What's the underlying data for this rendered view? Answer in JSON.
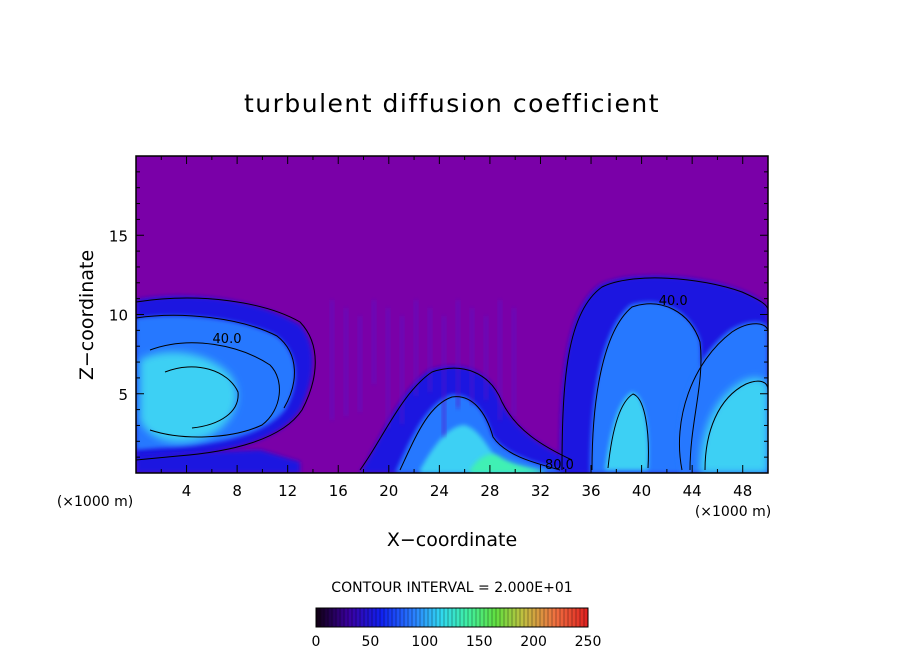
{
  "chart_data": {
    "type": "heatmap",
    "title": "turbulent diffusion coefficient",
    "xlabel": "X−coordinate",
    "ylabel": "Z−coordinate",
    "x_unit_left": "(×1000 m)",
    "x_unit_right": "(×1000 m)",
    "xlim": [
      0,
      50
    ],
    "ylim": [
      0,
      20
    ],
    "xticks": [
      4,
      8,
      12,
      16,
      20,
      24,
      28,
      32,
      36,
      40,
      44,
      48
    ],
    "yticks": [
      5,
      10,
      15
    ],
    "contour_interval_text": "CONTOUR INTERVAL = 2.000E+01",
    "contour_labels": [
      {
        "text": "40.0",
        "x": 7.2,
        "y": 8.2
      },
      {
        "text": "40.0",
        "x": 42.5,
        "y": 10.6
      },
      {
        "text": "80.0",
        "x": 33.5,
        "y": 0.25
      }
    ],
    "colorbar": {
      "min": 0,
      "max": 250,
      "tick_values": [
        0,
        50,
        100,
        150,
        200,
        250
      ]
    },
    "colors": {
      "background": "#7a00a8",
      "low": "#1a14e0",
      "mid": "#2878ff",
      "high": "#3cd0f4",
      "peak": "#40f0b4"
    }
  }
}
